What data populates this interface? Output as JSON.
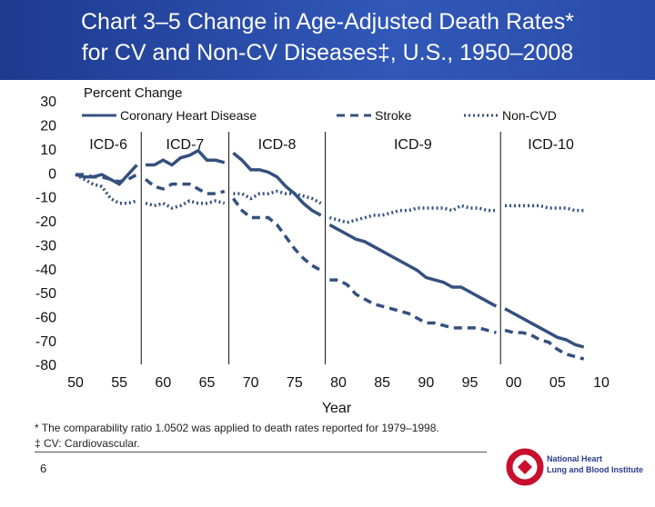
{
  "slide": {
    "title_lines": [
      "Chart 3–5 Change in Age-Adjusted Death Rates*",
      "for CV and Non-CV Diseases‡, U.S., 1950–2008"
    ],
    "footnotes": [
      "* The comparability ratio 1.0502 was applied to death rates reported for 1979–1998.",
      "‡ CV: Cardiovascular."
    ],
    "page_number": 6,
    "logo_lines": [
      "National Heart",
      "Lung and Blood Institute"
    ]
  },
  "chart_data": {
    "type": "line",
    "y_label": "Percent Change",
    "x_label": "Year",
    "legend": "top",
    "x": [
      1950,
      1951,
      1952,
      1953,
      1954,
      1955,
      1956,
      1957,
      1958,
      1959,
      1960,
      1961,
      1962,
      1963,
      1964,
      1965,
      1966,
      1967,
      1968,
      1969,
      1970,
      1971,
      1972,
      1973,
      1974,
      1975,
      1976,
      1977,
      1978,
      1979,
      1980,
      1981,
      1982,
      1983,
      1984,
      1985,
      1986,
      1987,
      1988,
      1989,
      1990,
      1991,
      1992,
      1993,
      1994,
      1995,
      1996,
      1997,
      1998,
      1999,
      2000,
      2001,
      2002,
      2003,
      2004,
      2005,
      2006,
      2007,
      2008
    ],
    "series": [
      {
        "name": "Coronary Heart Disease",
        "color": "#34507e",
        "dash": "solid",
        "values": [
          0,
          -1,
          -1,
          0,
          -2,
          -4,
          0,
          4,
          4,
          4,
          6,
          4,
          7,
          8,
          10,
          6,
          6,
          5,
          9,
          6,
          2,
          2,
          1,
          -1,
          -5,
          -8,
          -12,
          -15,
          -17,
          -21,
          -23,
          -25,
          -27,
          -28,
          -30,
          -32,
          -34,
          -36,
          -38,
          -40,
          -43,
          -44,
          -45,
          -47,
          -47,
          -49,
          -51,
          -53,
          -55,
          -56,
          -58,
          -60,
          -62,
          -64,
          -66,
          -68,
          -69,
          -71,
          -72
        ]
      },
      {
        "name": "Stroke",
        "color": "#34507e",
        "dash": "dashed",
        "values": [
          0,
          0,
          -1,
          -1,
          -2,
          -3,
          -2,
          0,
          -2,
          -5,
          -6,
          -4,
          -4,
          -4,
          -6,
          -8,
          -8,
          -7,
          -10,
          -15,
          -18,
          -18,
          -18,
          -21,
          -26,
          -31,
          -35,
          -38,
          -40,
          -44,
          -44,
          -46,
          -50,
          -52,
          -54,
          -55,
          -56,
          -57,
          -58,
          -60,
          -62,
          -62,
          -63,
          -64,
          -64,
          -64,
          -64,
          -65,
          -66,
          -65,
          -66,
          -66,
          -67,
          -69,
          -70,
          -73,
          -75,
          -76,
          -77
        ]
      },
      {
        "name": "Non-CVD",
        "color": "#34507e",
        "dash": "dotted",
        "values": [
          0,
          -2,
          -4,
          -5,
          -10,
          -12,
          -12,
          -11,
          -12,
          -13,
          -12,
          -14,
          -13,
          -11,
          -12,
          -12,
          -11,
          -12,
          -8,
          -8,
          -10,
          -8,
          -8,
          -7,
          -8,
          -8,
          -9,
          -10,
          -12,
          -18,
          -19,
          -20,
          -19,
          -18,
          -17,
          -17,
          -16,
          -15,
          -15,
          -14,
          -14,
          -14,
          -14,
          -15,
          -13,
          -14,
          -14,
          -15,
          -15,
          -13,
          -13,
          -13,
          -13,
          -13,
          -14,
          -14,
          -14,
          -15,
          -15
        ]
      }
    ],
    "revision_lines": [
      1957.5,
      1967.5,
      1978.5,
      1998.5
    ],
    "revision_labels": [
      "ICD-6",
      "ICD-7",
      "ICD-8",
      "ICD-9",
      "ICD-10"
    ],
    "xlim": [
      1950,
      2010
    ],
    "xticks": [
      {
        "value": 1950,
        "label": "50"
      },
      {
        "value": 1955,
        "label": "55"
      },
      {
        "value": 1960,
        "label": "60"
      },
      {
        "value": 1965,
        "label": "65"
      },
      {
        "value": 1970,
        "label": "70"
      },
      {
        "value": 1975,
        "label": "75"
      },
      {
        "value": 1980,
        "label": "80"
      },
      {
        "value": 1985,
        "label": "85"
      },
      {
        "value": 1990,
        "label": "90"
      },
      {
        "value": 1995,
        "label": "95"
      },
      {
        "value": 2000,
        "label": "00"
      },
      {
        "value": 2005,
        "label": "05"
      },
      {
        "value": 2010,
        "label": "10"
      }
    ],
    "ylim": [
      -80,
      30
    ],
    "yticks": [
      30,
      20,
      10,
      0,
      -10,
      -20,
      -30,
      -40,
      -50,
      -60,
      -70,
      -80
    ],
    "grid": false
  }
}
